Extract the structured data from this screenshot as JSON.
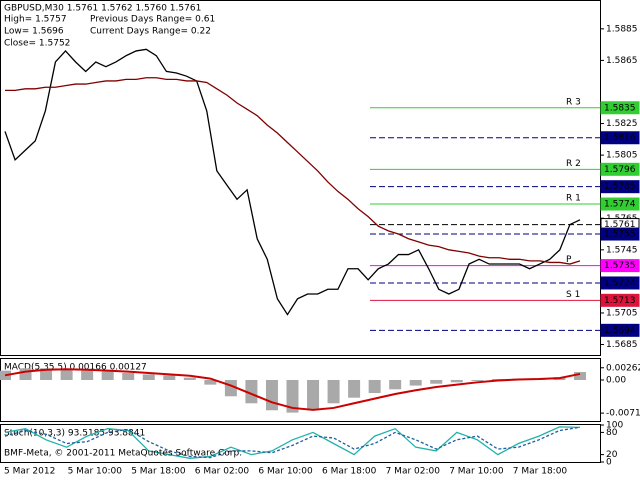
{
  "chart_data": [
    {
      "type": "line",
      "title": "GBPUSD,M30 1.5761 1.5762 1.5760 1.5761",
      "annotations": [
        "High= 1.5757",
        "Previous Days Range= 0.61",
        "Low= 1.5696",
        "Current Days Range= 0.22",
        "Close= 1.5752"
      ],
      "ylim": [
        1.5679,
        1.5902
      ],
      "yticks": [
        1.5885,
        1.5865,
        1.5825,
        1.5805,
        1.5765,
        1.5745,
        1.5705,
        1.5685
      ],
      "series": [
        {
          "color": "#000000",
          "values": [
            1.582,
            1.5802,
            1.5808,
            1.5814,
            1.5833,
            1.5864,
            1.5871,
            1.5864,
            1.5858,
            1.5864,
            1.5861,
            1.5864,
            1.5868,
            1.5871,
            1.5872,
            1.5868,
            1.5858,
            1.5857,
            1.5855,
            1.5852,
            1.5833,
            1.5795,
            1.5786,
            1.5777,
            1.5783,
            1.5752,
            1.5739,
            1.5714,
            1.5704,
            1.5714,
            1.5717,
            1.5717,
            1.572,
            1.572,
            1.5733,
            1.5733,
            1.5726,
            1.5733,
            1.5736,
            1.5742,
            1.5742,
            1.5745,
            1.5733,
            1.572,
            1.5717,
            1.572,
            1.5736,
            1.5739,
            1.5736,
            1.5736,
            1.5736,
            1.5736,
            1.5733,
            1.5736,
            1.5739,
            1.5745,
            1.5761,
            1.5764
          ]
        },
        {
          "color": "#800000",
          "values": [
            1.5846,
            1.5846,
            1.5847,
            1.5847,
            1.5848,
            1.5848,
            1.5849,
            1.585,
            1.585,
            1.5851,
            1.5852,
            1.5852,
            1.5853,
            1.5853,
            1.5854,
            1.5854,
            1.5853,
            1.5853,
            1.5852,
            1.5852,
            1.5851,
            1.5847,
            1.5843,
            1.5838,
            1.5834,
            1.583,
            1.5824,
            1.5819,
            1.5813,
            1.5807,
            1.5801,
            1.5795,
            1.5788,
            1.5782,
            1.5777,
            1.5771,
            1.5766,
            1.576,
            1.5757,
            1.5755,
            1.5752,
            1.575,
            1.5748,
            1.5747,
            1.5745,
            1.5744,
            1.5743,
            1.5741,
            1.574,
            1.574,
            1.5739,
            1.5739,
            1.5738,
            1.5738,
            1.5737,
            1.5737,
            1.5736,
            1.5738
          ]
        }
      ],
      "levels": [
        {
          "value": 1.5835,
          "color": "#32cd32",
          "name": "R 3"
        },
        {
          "value": 1.5816,
          "color": "#000080"
        },
        {
          "value": 1.5796,
          "color": "#32cd32",
          "name": "R 2"
        },
        {
          "value": 1.5785,
          "color": "#000080"
        },
        {
          "value": 1.5774,
          "color": "#32cd32",
          "name": "R 1"
        },
        {
          "value": 1.5761,
          "color": "#000000"
        },
        {
          "value": 1.5755,
          "color": "#000080"
        },
        {
          "value": 1.5735,
          "color": "#ff00ff",
          "name": "P"
        },
        {
          "value": 1.5724,
          "color": "#000080"
        },
        {
          "value": 1.5713,
          "color": "#dc143c",
          "name": "S 1"
        },
        {
          "value": 1.5694,
          "color": "#000080"
        }
      ]
    },
    {
      "type": "bar",
      "title": "MACD(5,35,5) 0.00166 0.00127",
      "ylim": [
        -0.0088,
        0.0045
      ],
      "yticks": [
        0.00262,
        {
          "value": 0,
          "label": "0.00"
        },
        -0.00711
      ],
      "values": [
        0.002,
        0.0025,
        0.0025,
        0.0022,
        0.002,
        0.0018,
        0.0015,
        0.0012,
        0.001,
        0.0005,
        -0.001,
        -0.0035,
        -0.005,
        -0.0065,
        -0.007,
        -0.0062,
        -0.005,
        -0.0038,
        -0.0028,
        -0.002,
        -0.0012,
        -0.0008,
        -0.0005,
        -0.0002,
        0.0002,
        0.0003,
        0.0002,
        0.0006,
        0.0017
      ],
      "color": "#a9a9a9",
      "signal": {
        "color": "#cc0000",
        "values": [
          0.001,
          0.0018,
          0.0022,
          0.0023,
          0.0022,
          0.002,
          0.0018,
          0.0015,
          0.0012,
          0.0009,
          0.0003,
          -0.0012,
          -0.003,
          -0.0048,
          -0.006,
          -0.0064,
          -0.006,
          -0.005,
          -0.004,
          -0.003,
          -0.0022,
          -0.0015,
          -0.001,
          -0.0005,
          -0.0001,
          0.0001,
          0.0002,
          0.0004,
          0.0013
        ]
      }
    },
    {
      "type": "line",
      "title": "Stoch(10,3,3) 93.5185 93.8841",
      "annotations": [
        "BMF-Meta, © 2001-2011 MetaQuotes Software Corp."
      ],
      "ylim": [
        0,
        100
      ],
      "yticks": [
        100,
        80,
        20,
        0
      ],
      "series": [
        {
          "color": "#20b2aa",
          "values": [
            80,
            90,
            60,
            40,
            70,
            90,
            85,
            30,
            20,
            10,
            15,
            40,
            20,
            30,
            60,
            80,
            50,
            20,
            70,
            90,
            40,
            30,
            80,
            60,
            20,
            50,
            70,
            95,
            93.5
          ]
        },
        {
          "color": "#1e5fa0",
          "dash": true,
          "values": [
            70,
            85,
            75,
            50,
            55,
            80,
            88,
            55,
            30,
            15,
            12,
            30,
            30,
            25,
            45,
            70,
            65,
            35,
            50,
            80,
            60,
            35,
            60,
            70,
            35,
            40,
            60,
            85,
            93.9
          ]
        }
      ],
      "xlabels": [
        "5 Mar 2012",
        "5 Mar 10:00",
        "5 Mar 18:00",
        "6 Mar 02:00",
        "6 Mar 10:00",
        "6 Mar 18:00",
        "7 Mar 02:00",
        "7 Mar 10:00",
        "7 Mar 18:00"
      ]
    }
  ]
}
